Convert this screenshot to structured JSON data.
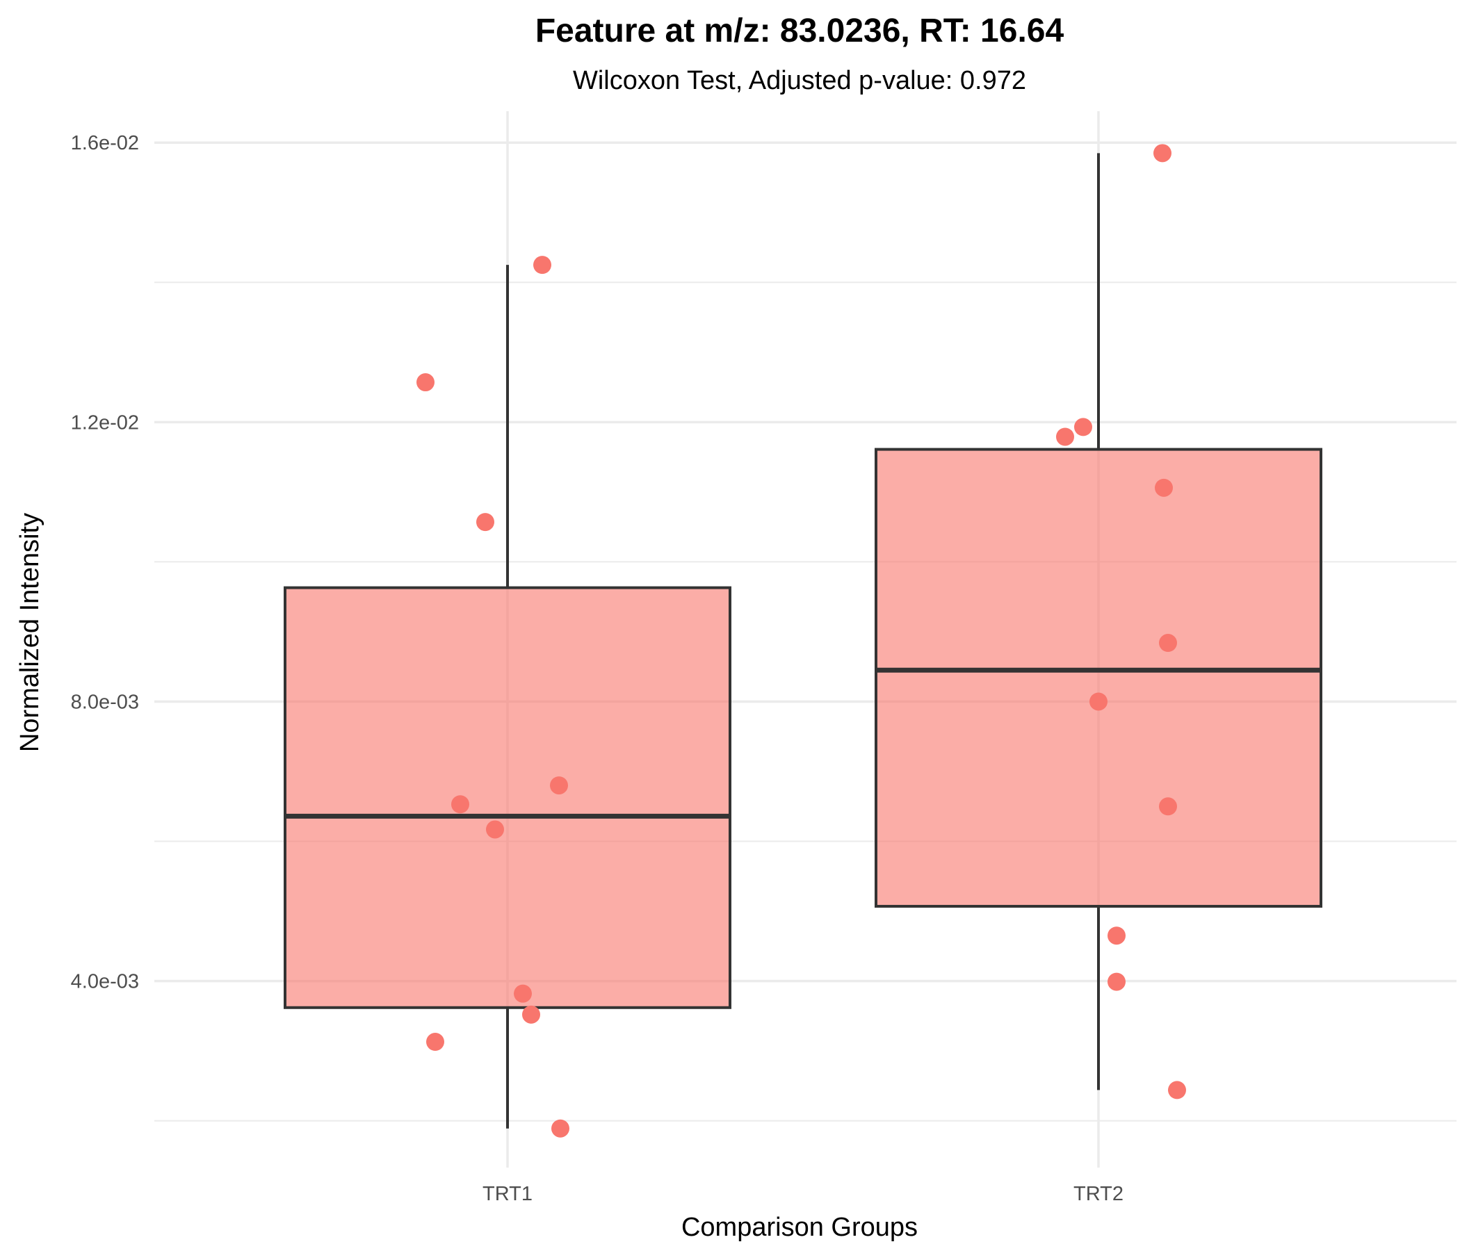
{
  "chart_data": {
    "type": "box",
    "title": "Feature at m/z: 83.0236, RT: 16.64",
    "subtitle": "Wilcoxon Test, Adjusted p-value: 0.972",
    "xlabel": "Comparison Groups",
    "ylabel": "Normalized Intensity",
    "ylim": [
      0.00133,
      0.01645
    ],
    "yticks": [
      0.004,
      0.008,
      0.012,
      0.016
    ],
    "ytick_labels": [
      "4.0e-03",
      "8.0e-03",
      "1.2e-02",
      "1.6e-02"
    ],
    "grid": true,
    "categories": [
      "TRT1",
      "TRT2"
    ],
    "groups": [
      {
        "name": "TRT1",
        "min": 0.00189,
        "q1": 0.00362,
        "median": 0.00636,
        "q3": 0.00963,
        "max": 0.01425,
        "points": [
          0.01425,
          0.01257,
          0.01057,
          0.0068,
          0.00653,
          0.00617,
          0.00382,
          0.00352,
          0.00313,
          0.00189
        ]
      },
      {
        "name": "TRT2",
        "min": 0.00244,
        "q1": 0.00507,
        "median": 0.00845,
        "q3": 0.01161,
        "max": 0.01585,
        "points": [
          0.01585,
          0.01193,
          0.01179,
          0.01106,
          0.00884,
          0.008,
          0.0065,
          0.00465,
          0.00399,
          0.00244
        ]
      }
    ],
    "box_fill": "#F8766D",
    "box_fill_opacity": 0.6,
    "point_color": "#F8766D",
    "line_color": "#333333",
    "grid_color": "#EBEBEB"
  }
}
